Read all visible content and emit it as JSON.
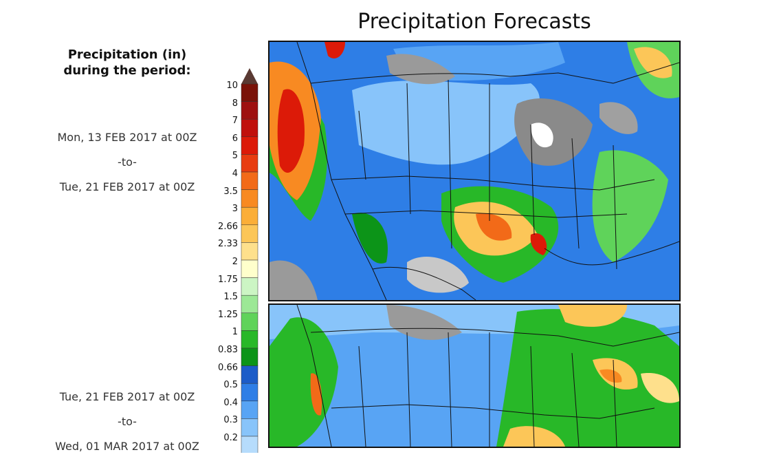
{
  "title": "Precipitation Forecasts",
  "legend": {
    "title_line1": "Precipitation (in)",
    "title_line2": "during the period:",
    "levels": [
      "10",
      "8",
      "7",
      "6",
      "5",
      "4",
      "3.5",
      "3",
      "2.66",
      "2.33",
      "2",
      "1.75",
      "1.5",
      "1.25",
      "1",
      "0.83",
      "0.66",
      "0.5",
      "0.4",
      "0.3",
      "0.2"
    ],
    "colors": [
      "#7a1208",
      "#9e1010",
      "#c0100c",
      "#dc1a08",
      "#e83c10",
      "#f26a18",
      "#f88a22",
      "#fbae38",
      "#fcc658",
      "#fee08c",
      "#ffffcc",
      "#ccf5c4",
      "#9ce896",
      "#5fd35a",
      "#28b828",
      "#0c9418",
      "#1c5cc8",
      "#2e7ee6",
      "#58a4f4",
      "#88c4fa",
      "#b6dcfc",
      "#d8ecff"
    ]
  },
  "panels": [
    {
      "from": "Mon, 13 FEB 2017 at 00Z",
      "sep": "-to-",
      "to": "Tue, 21 FEB 2017 at 00Z"
    },
    {
      "from": "Tue, 21 FEB 2017 at 00Z",
      "sep": "-to-",
      "to": "Wed, 01 MAR 2017 at 00Z"
    }
  ]
}
